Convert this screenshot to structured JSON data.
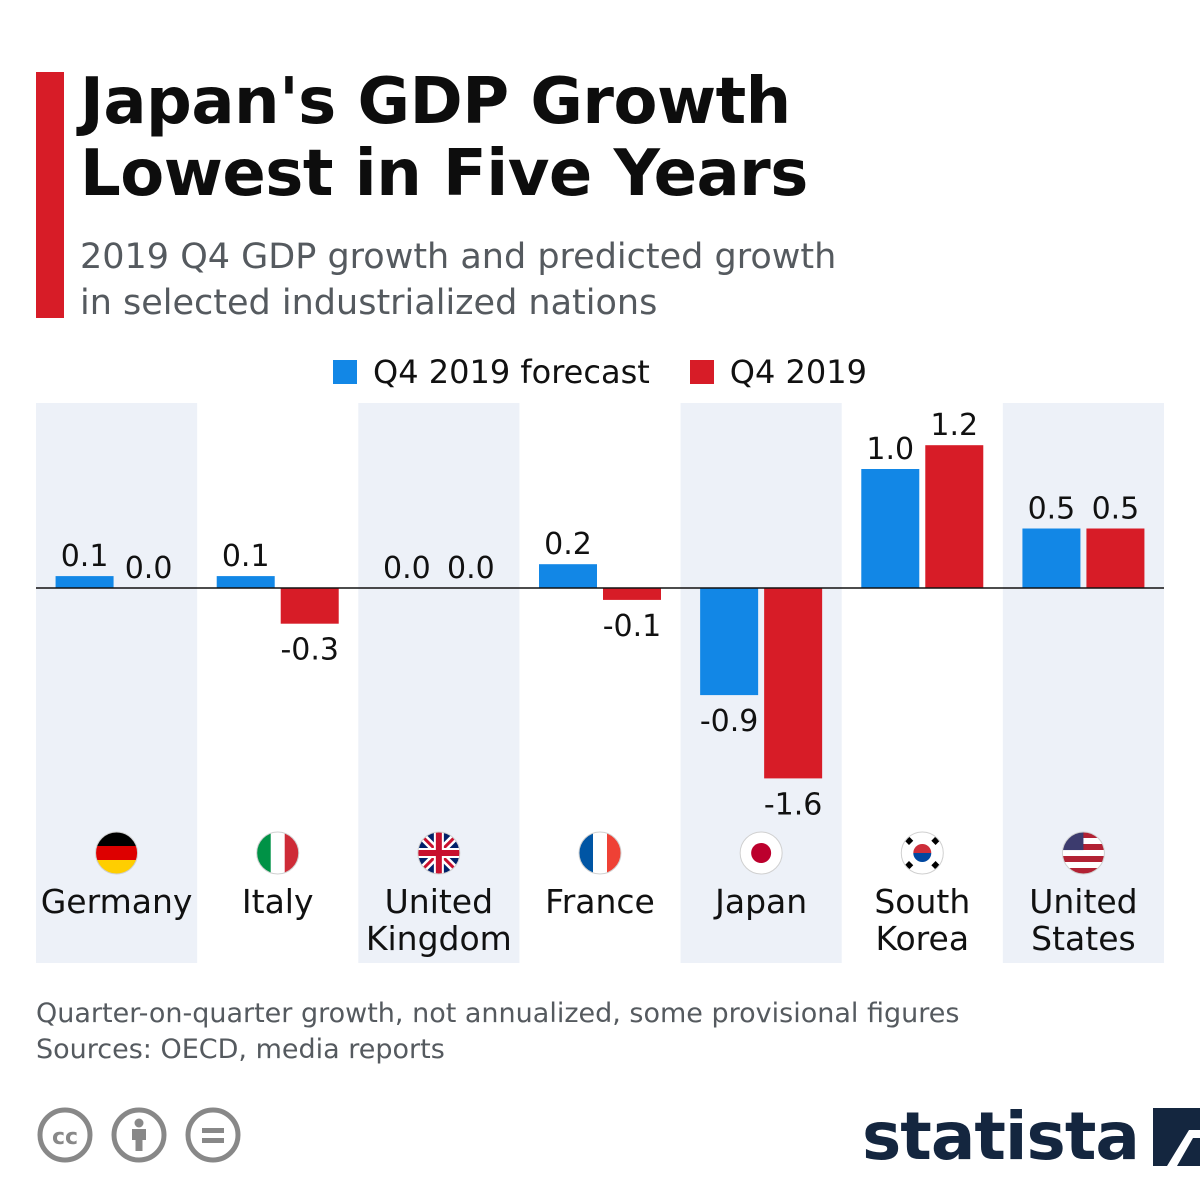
{
  "header": {
    "title_lines": [
      "Japan's GDP Growth",
      "Lowest in Five Years"
    ],
    "subtitle_lines": [
      "2019 Q4 GDP growth and predicted growth",
      "in selected industrialized nations"
    ]
  },
  "colors": {
    "accent": "#d71c27",
    "forecast": "#1287e6",
    "actual": "#d71c27",
    "band": "#edf1f8",
    "brand": "#14263f",
    "footnote": "#555a5f"
  },
  "chart_data": {
    "type": "bar",
    "categories": [
      "Germany",
      "Italy",
      "United Kingdom",
      "France",
      "Japan",
      "South Korea",
      "United States"
    ],
    "category_lines": [
      [
        "Germany"
      ],
      [
        "Italy"
      ],
      [
        "United",
        "Kingdom"
      ],
      [
        "France"
      ],
      [
        "Japan"
      ],
      [
        "South",
        "Korea"
      ],
      [
        "United",
        "States"
      ]
    ],
    "flag_icons": [
      "germany-flag-icon",
      "italy-flag-icon",
      "uk-flag-icon",
      "france-flag-icon",
      "japan-flag-icon",
      "south-korea-flag-icon",
      "usa-flag-icon"
    ],
    "series": [
      {
        "name": "Q4 2019 forecast",
        "values": [
          0.1,
          0.1,
          0.0,
          0.2,
          -0.9,
          1.0,
          0.5
        ],
        "labels": [
          "0.1",
          "0.1",
          "0.0",
          "0.2",
          "-0.9",
          "1.0",
          "0.5"
        ]
      },
      {
        "name": "Q4 2019",
        "values": [
          0.0,
          -0.3,
          0.0,
          -0.1,
          -1.6,
          1.2,
          0.5
        ],
        "labels": [
          "0.0",
          "-0.3",
          "0.0",
          "-0.1",
          "-1.6",
          "1.2",
          "0.5"
        ]
      }
    ],
    "ylim": [
      -1.6,
      1.2
    ],
    "legend_position": "top-center",
    "grid": false,
    "alternating_bands": true
  },
  "footnote": {
    "lines": [
      "Quarter-on-quarter growth, not annualized, some provisional figures",
      "Sources: OECD, media reports"
    ]
  },
  "license_icons": [
    "cc-icon",
    "attribution-icon",
    "no-derivatives-icon"
  ],
  "brand": {
    "name": "statista",
    "icon": "statista-logo-icon"
  }
}
